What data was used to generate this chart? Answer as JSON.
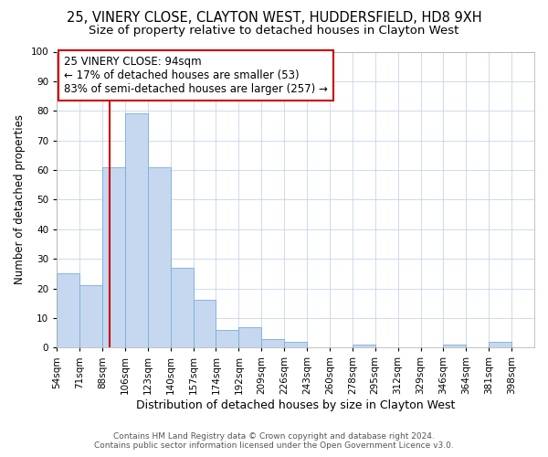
{
  "title1": "25, VINERY CLOSE, CLAYTON WEST, HUDDERSFIELD, HD8 9XH",
  "title2": "Size of property relative to detached houses in Clayton West",
  "xlabel": "Distribution of detached houses by size in Clayton West",
  "ylabel": "Number of detached properties",
  "bin_labels": [
    "54sqm",
    "71sqm",
    "88sqm",
    "106sqm",
    "123sqm",
    "140sqm",
    "157sqm",
    "174sqm",
    "192sqm",
    "209sqm",
    "226sqm",
    "243sqm",
    "260sqm",
    "278sqm",
    "295sqm",
    "312sqm",
    "329sqm",
    "346sqm",
    "364sqm",
    "381sqm",
    "398sqm"
  ],
  "bar_heights": [
    25,
    21,
    61,
    79,
    61,
    27,
    16,
    6,
    7,
    3,
    2,
    0,
    0,
    1,
    0,
    0,
    0,
    1,
    0,
    2,
    0
  ],
  "bar_color": "#c5d8f0",
  "bar_edge_color": "#7aadd4",
  "red_line_x": 2,
  "red_line_color": "#cc0000",
  "annotation_line1": "25 VINERY CLOSE: 94sqm",
  "annotation_line2": "← 17% of detached houses are smaller (53)",
  "annotation_line3": "83% of semi-detached houses are larger (257) →",
  "annotation_box_color": "#cc0000",
  "ylim": [
    0,
    100
  ],
  "yticks": [
    0,
    10,
    20,
    30,
    40,
    50,
    60,
    70,
    80,
    90,
    100
  ],
  "footer_text": "Contains HM Land Registry data © Crown copyright and database right 2024.\nContains public sector information licensed under the Open Government Licence v3.0.",
  "bg_color": "#ffffff",
  "grid_color": "#c8d4e8",
  "title1_fontsize": 10.5,
  "title2_fontsize": 9.5,
  "xlabel_fontsize": 9,
  "ylabel_fontsize": 8.5,
  "tick_fontsize": 7.5,
  "footer_fontsize": 6.5,
  "ann_fontsize": 8.5
}
